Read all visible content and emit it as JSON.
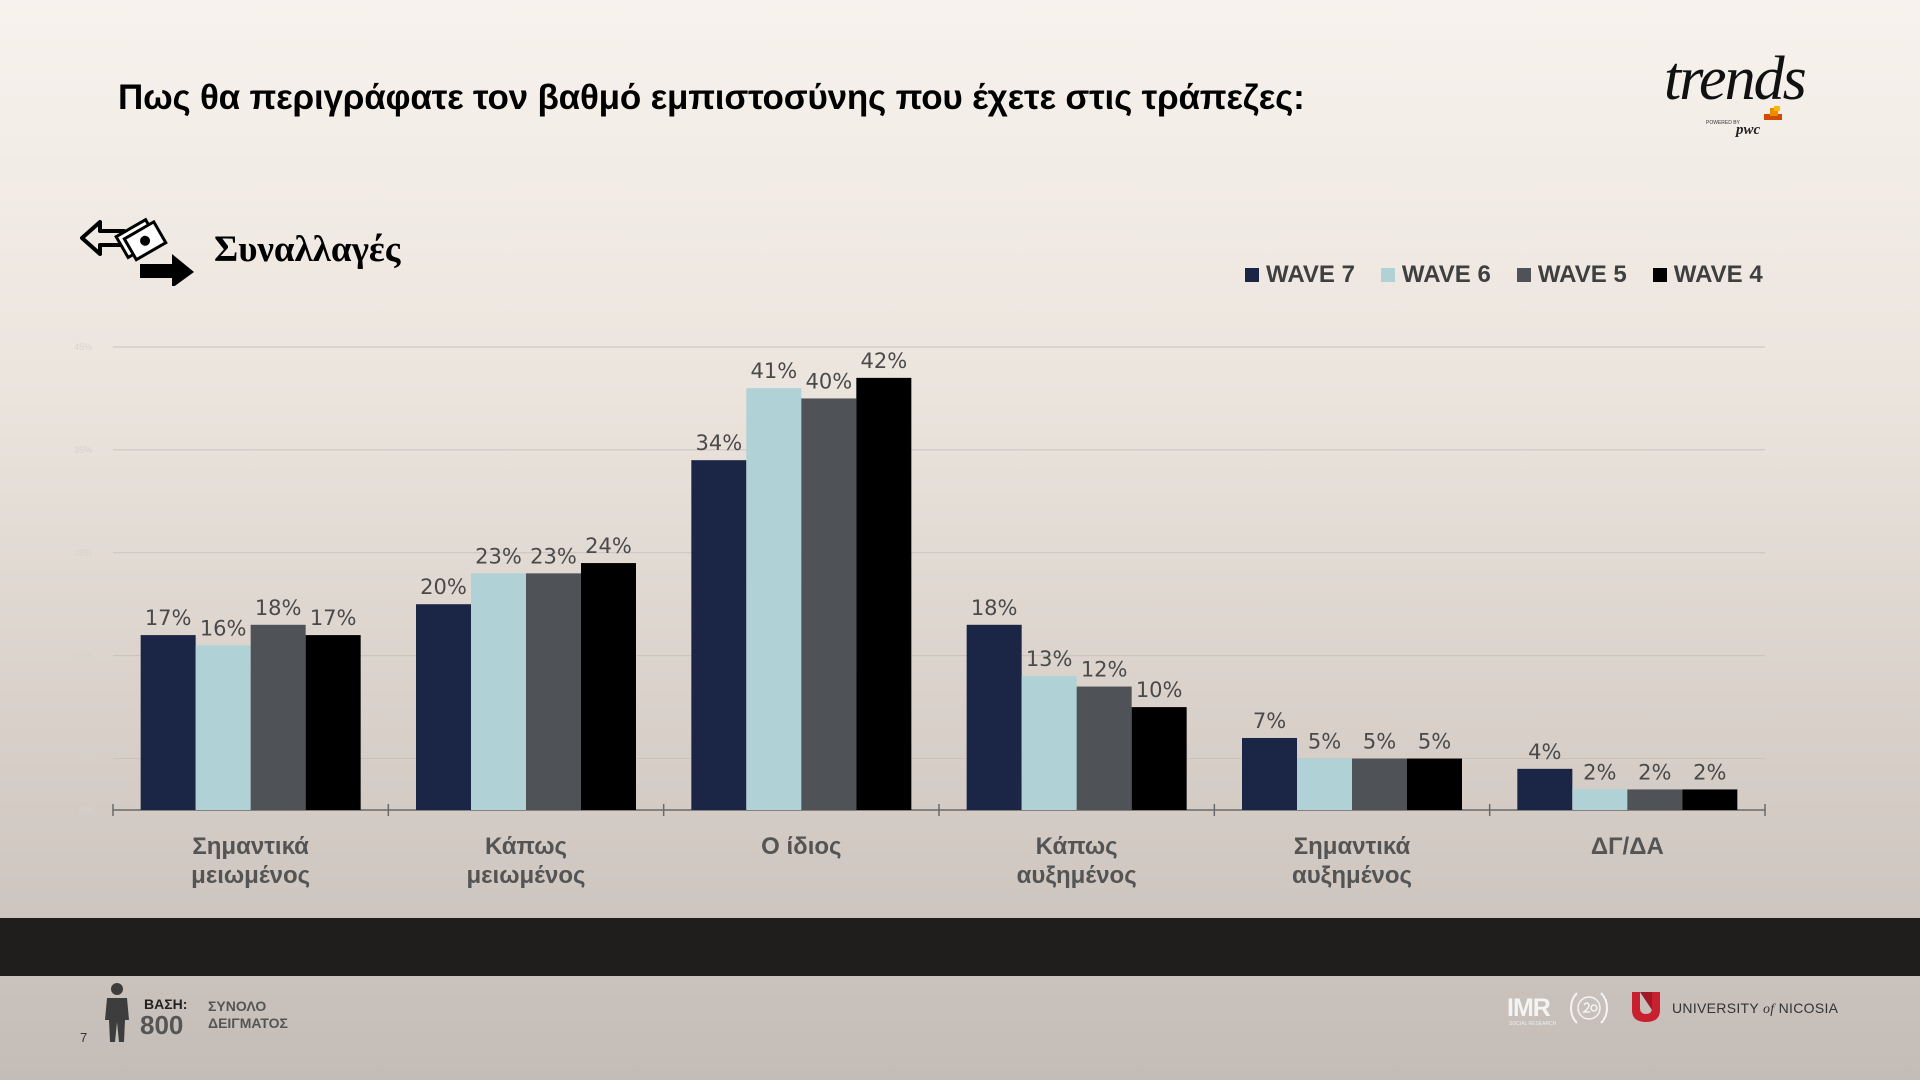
{
  "header": {
    "title": "Πως θα περιγράφατε τον βαθμό εμπιστοσύνης που έχετε στις τράπεζες:",
    "logo": {
      "brand": "trends",
      "powered_by": "POWERED BY",
      "partner": "pwc"
    }
  },
  "section": {
    "label": "Συναλλαγές",
    "icon": "money-exchange-icon"
  },
  "chart_data": {
    "type": "bar",
    "title": "",
    "xlabel": "",
    "ylabel": "",
    "ylim": [
      0,
      45
    ],
    "yticks": [
      0,
      5,
      15,
      25,
      35,
      45
    ],
    "ytick_labels": [
      "0%",
      "5%",
      "15%",
      "25%",
      "35%",
      "45%"
    ],
    "grid": true,
    "legend_position": "top-right",
    "value_format": "percent",
    "categories": [
      [
        "Σημαντικά",
        "μειωμένος"
      ],
      [
        "Κάπως",
        "μειωμένος"
      ],
      [
        "Ο ίδιος"
      ],
      [
        "Κάπως",
        "αυξημένος"
      ],
      [
        "Σημαντικά",
        "αυξημένος"
      ],
      [
        "ΔΓ/ΔΑ"
      ]
    ],
    "series": [
      {
        "name": "WAVE 7",
        "color": "#1b2546",
        "values": [
          17,
          20,
          34,
          18,
          7,
          4
        ]
      },
      {
        "name": "WAVE 6",
        "color": "#b0d1d5",
        "values": [
          16,
          23,
          41,
          13,
          5,
          2
        ]
      },
      {
        "name": "WAVE 5",
        "color": "#4f5257",
        "values": [
          18,
          23,
          40,
          12,
          5,
          2
        ]
      },
      {
        "name": "WAVE 4",
        "color": "#000000",
        "values": [
          17,
          24,
          42,
          10,
          5,
          2
        ]
      }
    ]
  },
  "footer": {
    "page_number": "7",
    "base_label": "ΒΑΣΗ:",
    "base_value": "800",
    "base_text_line1": "ΣΥΝΟΛΟ",
    "base_text_line2": "ΔΕΙΓΜΑΤΟΣ",
    "imr_logo": "IMR",
    "imr_sub": "SOCIAL RESEARCH",
    "university_line1": "UNIVERSITY ",
    "university_of": "of",
    "university_line2": " NICOSIA"
  }
}
